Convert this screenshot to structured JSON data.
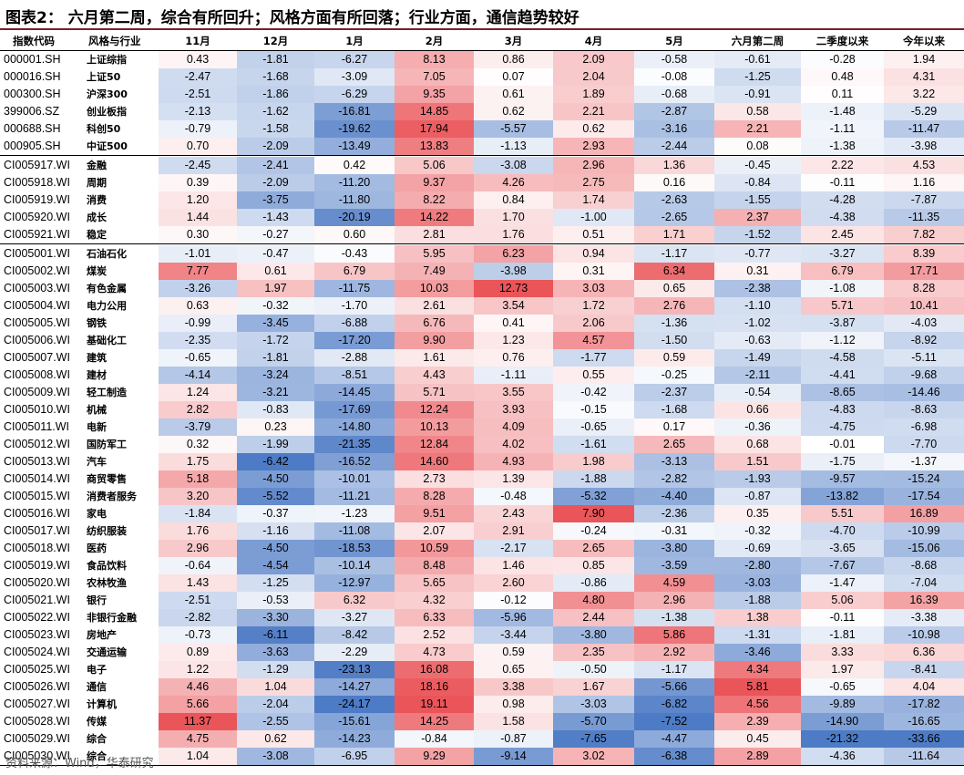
{
  "title": "图表2： 六月第二周，综合有所回升；风格方面有所回落；行业方面，通信趋势较好",
  "source": "资料来源：Wind，华泰研究",
  "colors": {
    "positive": "#e8464b",
    "negative": "#3e6fc0",
    "title_rule": "#7a1f2b"
  },
  "chart_data": {
    "type": "table",
    "columns": [
      "指数代码",
      "风格与行业",
      "11月",
      "12月",
      "1月",
      "2月",
      "3月",
      "4月",
      "5月",
      "六月第二周",
      "二季度以来",
      "今年以来"
    ],
    "groups": [
      [
        [
          "000001.SH",
          "上证综指",
          [
            0.43,
            -1.81,
            -6.27,
            8.13,
            0.86,
            2.09,
            -0.58,
            -0.61,
            -0.28,
            1.94
          ]
        ],
        [
          "000016.SH",
          "上证50",
          [
            -2.47,
            -1.68,
            -3.09,
            7.05,
            0.07,
            2.04,
            -0.08,
            -1.25,
            0.48,
            4.31
          ]
        ],
        [
          "000300.SH",
          "沪深300",
          [
            -2.51,
            -1.86,
            -6.29,
            9.35,
            0.61,
            1.89,
            -0.68,
            -0.91,
            0.11,
            3.22
          ]
        ],
        [
          "399006.SZ",
          "创业板指",
          [
            -2.13,
            -1.62,
            -16.81,
            14.85,
            0.62,
            2.21,
            -2.87,
            0.58,
            -1.48,
            -5.29
          ]
        ],
        [
          "000688.SH",
          "科创50",
          [
            -0.79,
            -1.58,
            -19.62,
            17.94,
            -5.57,
            0.62,
            -3.16,
            2.21,
            -1.11,
            -11.47
          ]
        ],
        [
          "000905.SH",
          "中证500",
          [
            0.7,
            -2.09,
            -13.49,
            13.83,
            -1.13,
            2.93,
            -2.44,
            0.08,
            -1.38,
            -3.98
          ]
        ]
      ],
      [
        [
          "CI005917.WI",
          "金融",
          [
            -2.45,
            -2.41,
            0.42,
            5.06,
            -3.08,
            2.96,
            1.36,
            -0.45,
            2.22,
            4.53
          ]
        ],
        [
          "CI005918.WI",
          "周期",
          [
            0.39,
            -2.09,
            -11.2,
            9.37,
            4.26,
            2.75,
            0.16,
            -0.84,
            -0.11,
            1.16
          ]
        ],
        [
          "CI005919.WI",
          "消费",
          [
            1.2,
            -3.75,
            -11.8,
            8.22,
            0.84,
            1.74,
            -2.63,
            -1.55,
            -4.28,
            -7.87
          ]
        ],
        [
          "CI005920.WI",
          "成长",
          [
            1.44,
            -1.43,
            -20.19,
            14.22,
            1.7,
            -1.0,
            -2.65,
            2.37,
            -4.38,
            -11.35
          ]
        ],
        [
          "CI005921.WI",
          "稳定",
          [
            0.3,
            -0.27,
            0.6,
            2.81,
            1.76,
            0.51,
            1.71,
            -1.52,
            2.45,
            7.82
          ]
        ]
      ],
      [
        [
          "CI005001.WI",
          "石油石化",
          [
            -1.01,
            -0.47,
            -0.43,
            5.95,
            6.23,
            0.94,
            -1.17,
            -0.77,
            -3.27,
            8.39
          ]
        ],
        [
          "CI005002.WI",
          "煤炭",
          [
            7.77,
            0.61,
            6.79,
            7.49,
            -3.98,
            0.31,
            6.34,
            0.31,
            6.79,
            17.71
          ]
        ],
        [
          "CI005003.WI",
          "有色金属",
          [
            -3.26,
            1.97,
            -11.75,
            10.03,
            12.73,
            3.03,
            0.65,
            -2.38,
            -1.08,
            8.28
          ]
        ],
        [
          "CI005004.WI",
          "电力公用",
          [
            0.63,
            -0.32,
            -1.7,
            2.61,
            3.54,
            1.72,
            2.76,
            -1.1,
            5.71,
            10.41
          ]
        ],
        [
          "CI005005.WI",
          "钢铁",
          [
            -0.99,
            -3.45,
            -6.88,
            6.76,
            0.41,
            2.06,
            -1.36,
            -1.02,
            -3.87,
            -4.03
          ]
        ],
        [
          "CI005006.WI",
          "基础化工",
          [
            -2.35,
            -1.72,
            -17.2,
            9.9,
            1.23,
            4.57,
            -1.5,
            -0.63,
            -1.12,
            -8.92
          ]
        ],
        [
          "CI005007.WI",
          "建筑",
          [
            -0.65,
            -1.81,
            -2.88,
            1.61,
            0.76,
            -1.77,
            0.59,
            -1.49,
            -4.58,
            -5.11
          ]
        ],
        [
          "CI005008.WI",
          "建材",
          [
            -4.14,
            -3.24,
            -8.51,
            4.43,
            -1.11,
            0.55,
            -0.25,
            -2.11,
            -4.41,
            -9.68
          ]
        ],
        [
          "CI005009.WI",
          "轻工制造",
          [
            1.24,
            -3.21,
            -14.45,
            5.71,
            3.55,
            -0.42,
            -2.37,
            -0.54,
            -8.65,
            -14.46
          ]
        ],
        [
          "CI005010.WI",
          "机械",
          [
            2.82,
            -0.83,
            -17.69,
            12.24,
            3.93,
            -0.15,
            -1.68,
            0.66,
            -4.83,
            -8.63
          ]
        ],
        [
          "CI005011.WI",
          "电新",
          [
            -3.79,
            0.23,
            -14.8,
            10.13,
            4.09,
            -0.65,
            0.17,
            -0.36,
            -4.75,
            -6.98
          ]
        ],
        [
          "CI005012.WI",
          "国防军工",
          [
            0.32,
            -1.99,
            -21.35,
            12.84,
            4.02,
            -1.61,
            2.65,
            0.68,
            -0.01,
            -7.7
          ]
        ],
        [
          "CI005013.WI",
          "汽车",
          [
            1.75,
            -6.42,
            -16.52,
            14.6,
            4.93,
            1.98,
            -3.13,
            1.51,
            -1.75,
            -1.37
          ]
        ],
        [
          "CI005014.WI",
          "商贸零售",
          [
            5.18,
            -4.5,
            -10.01,
            2.73,
            1.39,
            -1.88,
            -2.82,
            -1.93,
            -9.57,
            -15.24
          ]
        ],
        [
          "CI005015.WI",
          "消费者服务",
          [
            3.2,
            -5.52,
            -11.21,
            8.28,
            -0.48,
            -5.32,
            -4.4,
            -0.87,
            -13.82,
            -17.54
          ]
        ],
        [
          "CI005016.WI",
          "家电",
          [
            -1.84,
            -0.37,
            -1.23,
            9.51,
            2.43,
            7.9,
            -2.36,
            0.35,
            5.51,
            16.89
          ]
        ],
        [
          "CI005017.WI",
          "纺织服装",
          [
            1.76,
            -1.16,
            -11.08,
            2.07,
            2.91,
            -0.24,
            -0.31,
            -0.32,
            -4.7,
            -10.99
          ]
        ],
        [
          "CI005018.WI",
          "医药",
          [
            2.96,
            -4.5,
            -18.53,
            10.59,
            -2.17,
            2.65,
            -3.8,
            -0.69,
            -3.65,
            -15.06
          ]
        ],
        [
          "CI005019.WI",
          "食品饮料",
          [
            -0.64,
            -4.54,
            -10.14,
            8.48,
            1.46,
            0.85,
            -3.59,
            -2.8,
            -7.67,
            -8.68
          ]
        ],
        [
          "CI005020.WI",
          "农林牧渔",
          [
            1.43,
            -1.25,
            -12.97,
            5.65,
            2.6,
            -0.86,
            4.59,
            -3.03,
            -1.47,
            -7.04
          ]
        ],
        [
          "CI005021.WI",
          "银行",
          [
            -2.51,
            -0.53,
            6.32,
            4.32,
            -0.12,
            4.8,
            2.96,
            -1.88,
            5.06,
            16.39
          ]
        ],
        [
          "CI005022.WI",
          "非银行金融",
          [
            -2.82,
            -3.3,
            -3.27,
            6.33,
            -5.96,
            2.44,
            -1.38,
            1.38,
            -0.11,
            -3.38
          ]
        ],
        [
          "CI005023.WI",
          "房地产",
          [
            -0.73,
            -6.11,
            -8.42,
            2.52,
            -3.44,
            -3.8,
            5.86,
            -1.31,
            -1.81,
            -10.98
          ]
        ],
        [
          "CI005024.WI",
          "交通运输",
          [
            0.89,
            -3.63,
            -2.29,
            4.73,
            0.59,
            2.35,
            2.92,
            -3.46,
            3.33,
            6.36
          ]
        ],
        [
          "CI005025.WI",
          "电子",
          [
            1.22,
            -1.29,
            -23.13,
            16.08,
            0.65,
            -0.5,
            -1.17,
            4.34,
            1.97,
            -8.41
          ]
        ],
        [
          "CI005026.WI",
          "通信",
          [
            4.46,
            1.04,
            -14.27,
            18.16,
            3.38,
            1.67,
            -5.66,
            5.81,
            -0.65,
            4.04
          ]
        ],
        [
          "CI005027.WI",
          "计算机",
          [
            5.66,
            -2.04,
            -24.17,
            19.11,
            0.98,
            -3.03,
            -6.82,
            4.56,
            -9.89,
            -17.82
          ]
        ],
        [
          "CI005028.WI",
          "传媒",
          [
            11.37,
            -2.55,
            -15.61,
            14.25,
            1.58,
            -5.7,
            -7.52,
            2.39,
            -14.9,
            -16.65
          ]
        ],
        [
          "CI005029.WI",
          "综合",
          [
            4.75,
            0.62,
            -14.23,
            -0.84,
            -0.87,
            -7.65,
            -4.47,
            0.45,
            -21.32,
            -33.66
          ]
        ],
        [
          "CI005030.WI",
          "综合",
          [
            1.04,
            -3.08,
            -6.95,
            9.29,
            -9.14,
            3.02,
            -6.38,
            2.89,
            -4.36,
            -11.64
          ]
        ]
      ]
    ]
  }
}
